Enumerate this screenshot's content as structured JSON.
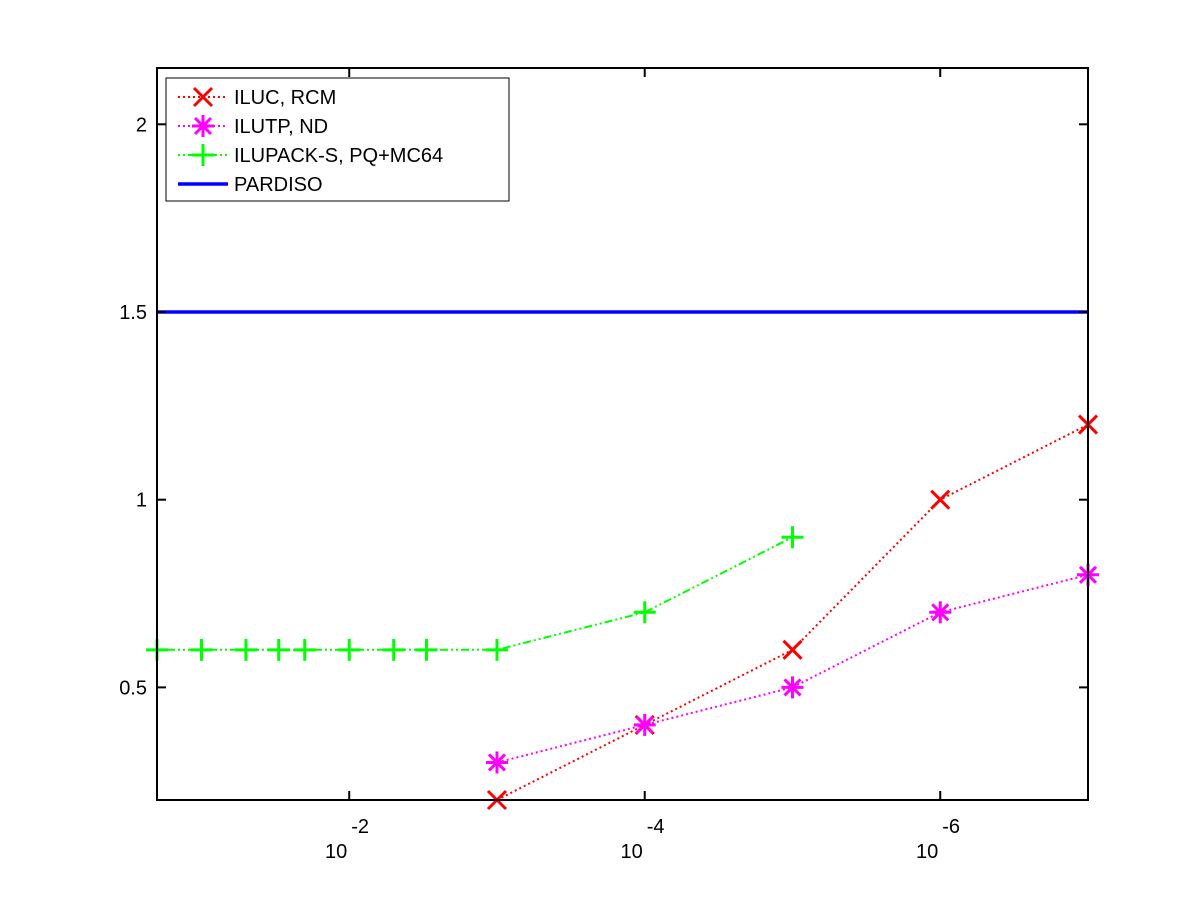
{
  "chart_data": {
    "type": "line",
    "title": "",
    "xlabel": "",
    "ylabel": "",
    "x_scale": "log",
    "x_reversed": true,
    "xlim": [
      0.2,
      1e-07
    ],
    "ylim": [
      0.2,
      2.15
    ],
    "grid": false,
    "legend_position": "top-left",
    "xticks": [
      {
        "value": 0.01,
        "base": "10",
        "exp": "-2"
      },
      {
        "value": 0.0001,
        "base": "10",
        "exp": "-4"
      },
      {
        "value": 1e-06,
        "base": "10",
        "exp": "-6"
      }
    ],
    "yticks": [
      {
        "value": 0.5,
        "label": "0.5"
      },
      {
        "value": 1,
        "label": "1"
      },
      {
        "value": 1.5,
        "label": "1.5"
      },
      {
        "value": 2,
        "label": "2"
      }
    ],
    "series": [
      {
        "name": "ILUC, RCM",
        "color": "#ff0000",
        "marker": "x",
        "line": "dotted",
        "x": [
          0.001,
          0.0001,
          1e-05,
          1e-06,
          1e-07
        ],
        "y": [
          0.2,
          0.4,
          0.6,
          1.0,
          1.2
        ]
      },
      {
        "name": "ILUTP,  ND",
        "color": "#ff00ff",
        "marker": "asterisk",
        "line": "dotted",
        "x": [
          0.001,
          0.0001,
          1e-05,
          1e-06,
          1e-07
        ],
        "y": [
          0.3,
          0.4,
          0.5,
          0.7,
          0.8
        ]
      },
      {
        "name": "ILUPACK-S, PQ+MC64",
        "color": "#00ff00",
        "marker": "plus",
        "line": "dashdot",
        "x": [
          0.2,
          0.1,
          0.05,
          0.03,
          0.02,
          0.01,
          0.005,
          0.003,
          0.001,
          0.0001,
          1e-05
        ],
        "y": [
          0.6,
          0.6,
          0.6,
          0.6,
          0.6,
          0.6,
          0.6,
          0.6,
          0.6,
          0.7,
          0.9
        ]
      },
      {
        "name": "PARDISO",
        "color": "#0000ff",
        "marker": "none",
        "line": "solid",
        "x": [
          0.2,
          1e-07
        ],
        "y": [
          1.5,
          1.5
        ]
      }
    ]
  }
}
